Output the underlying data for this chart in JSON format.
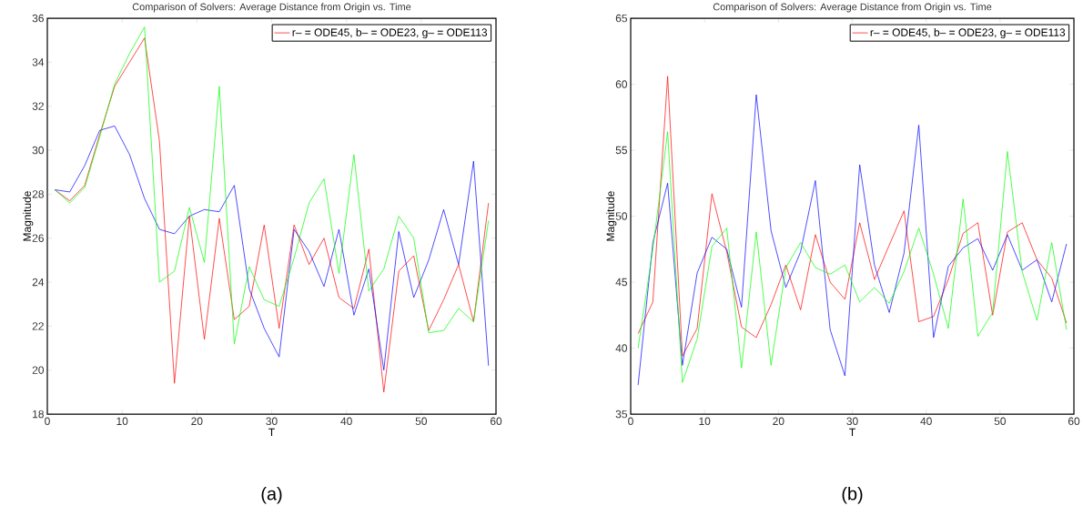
{
  "chart_data": [
    {
      "type": "line",
      "title": "Comparison of Solvers: Average Distance from Origin vs. Time",
      "xlabel": "T",
      "ylabel": "Magnitude",
      "annotations": [
        "(a)"
      ],
      "x": [
        1,
        3,
        5,
        7,
        9,
        11,
        13,
        15,
        17,
        19,
        21,
        23,
        25,
        27,
        29,
        31,
        33,
        35,
        37,
        39,
        41,
        43,
        45,
        47,
        49,
        51,
        53,
        55,
        57,
        59
      ],
      "series": [
        {
          "name": "r– = ODE45, b– = ODE23, g– = ODE113",
          "color": "#ff0000",
          "values": [
            28.2,
            27.7,
            28.4,
            30.7,
            32.9,
            34.0,
            35.1,
            30.4,
            19.4,
            27.0,
            21.4,
            26.9,
            22.3,
            22.9,
            26.6,
            21.9,
            26.6,
            24.8,
            26.0,
            23.3,
            22.8,
            25.5,
            19.0,
            24.5,
            25.2,
            21.8,
            23.2,
            24.8,
            22.2,
            27.6
          ]
        },
        {
          "color": "#0000ff",
          "values": [
            28.2,
            28.1,
            29.3,
            30.9,
            31.1,
            29.8,
            27.8,
            26.4,
            26.2,
            27.0,
            27.3,
            27.2,
            28.4,
            23.7,
            21.9,
            20.6,
            26.4,
            25.4,
            23.8,
            26.4,
            22.5,
            24.6,
            20.0,
            26.3,
            23.3,
            25.0,
            27.3,
            24.8,
            29.5,
            20.2
          ]
        },
        {
          "color": "#00ff00",
          "values": [
            28.2,
            27.6,
            28.3,
            30.6,
            33.0,
            34.4,
            35.6,
            24.0,
            24.5,
            27.4,
            24.9,
            32.9,
            21.2,
            24.7,
            23.2,
            22.9,
            25.1,
            27.6,
            28.7,
            24.4,
            29.8,
            23.6,
            24.6,
            27.0,
            26.0,
            21.7,
            21.8,
            22.8,
            22.2,
            26.8
          ]
        }
      ],
      "xlim": [
        0,
        60
      ],
      "ylim": [
        18,
        36
      ],
      "xticks": [
        0,
        10,
        20,
        30,
        40,
        50,
        60
      ],
      "yticks": [
        18,
        20,
        22,
        24,
        26,
        28,
        30,
        32,
        34,
        36
      ],
      "legend": "top right",
      "marker": "none",
      "grid": false
    },
    {
      "type": "line",
      "title": "Comparison of Solvers: Average Distance from Origin vs. Time",
      "xlabel": "T",
      "ylabel": "Magnitude",
      "annotations": [
        "(b)"
      ],
      "x": [
        1,
        3,
        5,
        7,
        9,
        11,
        13,
        15,
        17,
        19,
        21,
        23,
        25,
        27,
        29,
        31,
        33,
        35,
        37,
        39,
        41,
        43,
        45,
        47,
        49,
        51,
        53,
        55,
        57,
        59
      ],
      "series": [
        {
          "name": "r– = ODE45, b– = ODE23, g– = ODE113",
          "color": "#ff0000",
          "values": [
            41.1,
            43.5,
            60.6,
            39.4,
            41.5,
            51.7,
            47.3,
            41.6,
            40.8,
            43.3,
            46.3,
            42.9,
            48.6,
            45.0,
            43.7,
            49.5,
            45.2,
            47.8,
            50.4,
            42.0,
            42.4,
            45.2,
            48.7,
            49.5,
            42.5,
            48.8,
            49.5,
            46.7,
            45.3,
            41.9
          ]
        },
        {
          "color": "#0000ff",
          "values": [
            37.2,
            48.0,
            52.5,
            38.7,
            45.7,
            48.4,
            47.5,
            43.1,
            59.2,
            48.9,
            44.6,
            47.3,
            52.7,
            41.4,
            37.9,
            53.9,
            46.3,
            42.7,
            47.2,
            56.9,
            40.8,
            46.2,
            47.6,
            48.3,
            45.9,
            48.6,
            45.9,
            46.7,
            43.5,
            47.9
          ]
        },
        {
          "color": "#00ff00",
          "values": [
            40.0,
            47.5,
            56.4,
            37.4,
            40.7,
            47.7,
            49.1,
            38.5,
            48.8,
            38.7,
            46.1,
            48.0,
            46.1,
            45.6,
            46.3,
            43.5,
            44.6,
            43.4,
            45.8,
            49.1,
            45.6,
            41.5,
            51.3,
            40.9,
            42.7,
            54.9,
            45.8,
            42.1,
            48.0,
            41.4
          ]
        }
      ],
      "xlim": [
        0,
        60
      ],
      "ylim": [
        35,
        65
      ],
      "xticks": [
        0,
        10,
        20,
        30,
        40,
        50,
        60
      ],
      "yticks": [
        35,
        40,
        45,
        50,
        55,
        60,
        65
      ],
      "legend": "top right",
      "marker": "none",
      "grid": false
    }
  ]
}
